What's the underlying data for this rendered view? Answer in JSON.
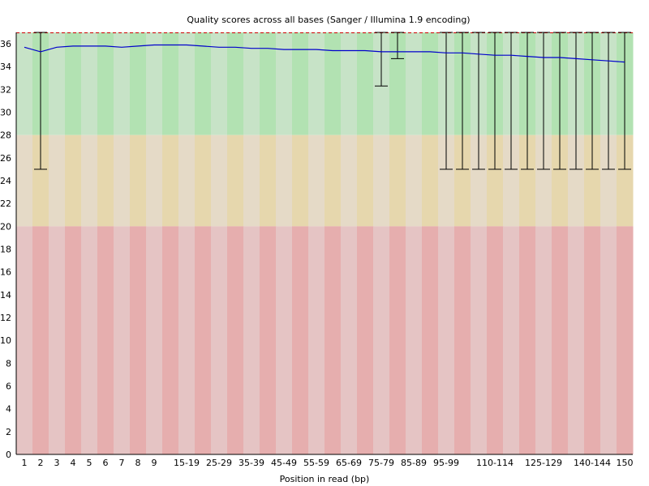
{
  "chart_data": {
    "type": "boxplot",
    "title": "Quality scores across all bases (Sanger / Illumina 1.9 encoding)",
    "xlabel": "Position in read (bp)",
    "ylabel": "",
    "ylim": [
      0,
      37
    ],
    "yticks": [
      0,
      2,
      4,
      6,
      8,
      10,
      12,
      14,
      16,
      18,
      20,
      22,
      24,
      26,
      28,
      30,
      32,
      34,
      36
    ],
    "quality_bands": [
      {
        "from": 28,
        "to": 37,
        "colors": [
          "#c7e3c7",
          "#b2e2b2"
        ]
      },
      {
        "from": 20,
        "to": 28,
        "colors": [
          "#e5dac7",
          "#e6d7ad"
        ]
      },
      {
        "from": 0,
        "to": 20,
        "colors": [
          "#e5c4c4",
          "#e6aeae"
        ]
      }
    ],
    "mean_line_color": "#0000cc",
    "whisker_color": "#000000",
    "categories": [
      "1",
      "2",
      "3",
      "4",
      "5",
      "6",
      "7",
      "8",
      "9",
      "10-14",
      "15-19",
      "20-24",
      "25-29",
      "30-34",
      "35-39",
      "40-44",
      "45-49",
      "50-54",
      "55-59",
      "60-64",
      "65-69",
      "70-74",
      "75-79",
      "80-84",
      "85-89",
      "90-94",
      "95-99",
      "100-104",
      "105-109",
      "110-114",
      "115-119",
      "120-124",
      "125-129",
      "130-134",
      "135-139",
      "140-144",
      "145-149",
      "150"
    ],
    "tick_labels": [
      "1",
      "2",
      "3",
      "4",
      "5",
      "6",
      "7",
      "8",
      "9",
      "",
      "15-19",
      "",
      "25-29",
      "",
      "35-39",
      "",
      "45-49",
      "",
      "55-59",
      "",
      "65-69",
      "",
      "75-79",
      "",
      "85-89",
      "",
      "95-99",
      "",
      "",
      "110-114",
      "",
      "",
      "125-129",
      "",
      "",
      "140-144",
      "",
      "150"
    ],
    "mean": [
      35.7,
      35.3,
      35.7,
      35.8,
      35.8,
      35.8,
      35.7,
      35.8,
      35.9,
      35.9,
      35.9,
      35.8,
      35.7,
      35.7,
      35.6,
      35.6,
      35.5,
      35.5,
      35.5,
      35.4,
      35.4,
      35.4,
      35.3,
      35.3,
      35.3,
      35.3,
      35.2,
      35.2,
      35.1,
      35.0,
      35.0,
      34.9,
      34.8,
      34.8,
      34.7,
      34.6,
      34.5,
      34.4
    ],
    "upper": [
      37,
      37,
      37,
      37,
      37,
      37,
      37,
      37,
      37,
      37,
      37,
      37,
      37,
      37,
      37,
      37,
      37,
      37,
      37,
      37,
      37,
      37,
      37,
      37,
      37,
      37,
      37,
      37,
      37,
      37,
      37,
      37,
      37,
      37,
      37,
      37,
      37,
      37
    ],
    "lower": [
      37,
      25,
      37,
      37,
      37,
      37,
      37,
      37,
      37,
      37,
      37,
      37,
      37,
      37,
      37,
      37,
      37,
      37,
      37,
      37,
      37,
      37,
      32.3,
      34.7,
      37,
      37,
      25,
      25,
      25,
      25,
      25,
      25,
      25,
      25,
      25,
      25,
      25,
      25
    ]
  }
}
